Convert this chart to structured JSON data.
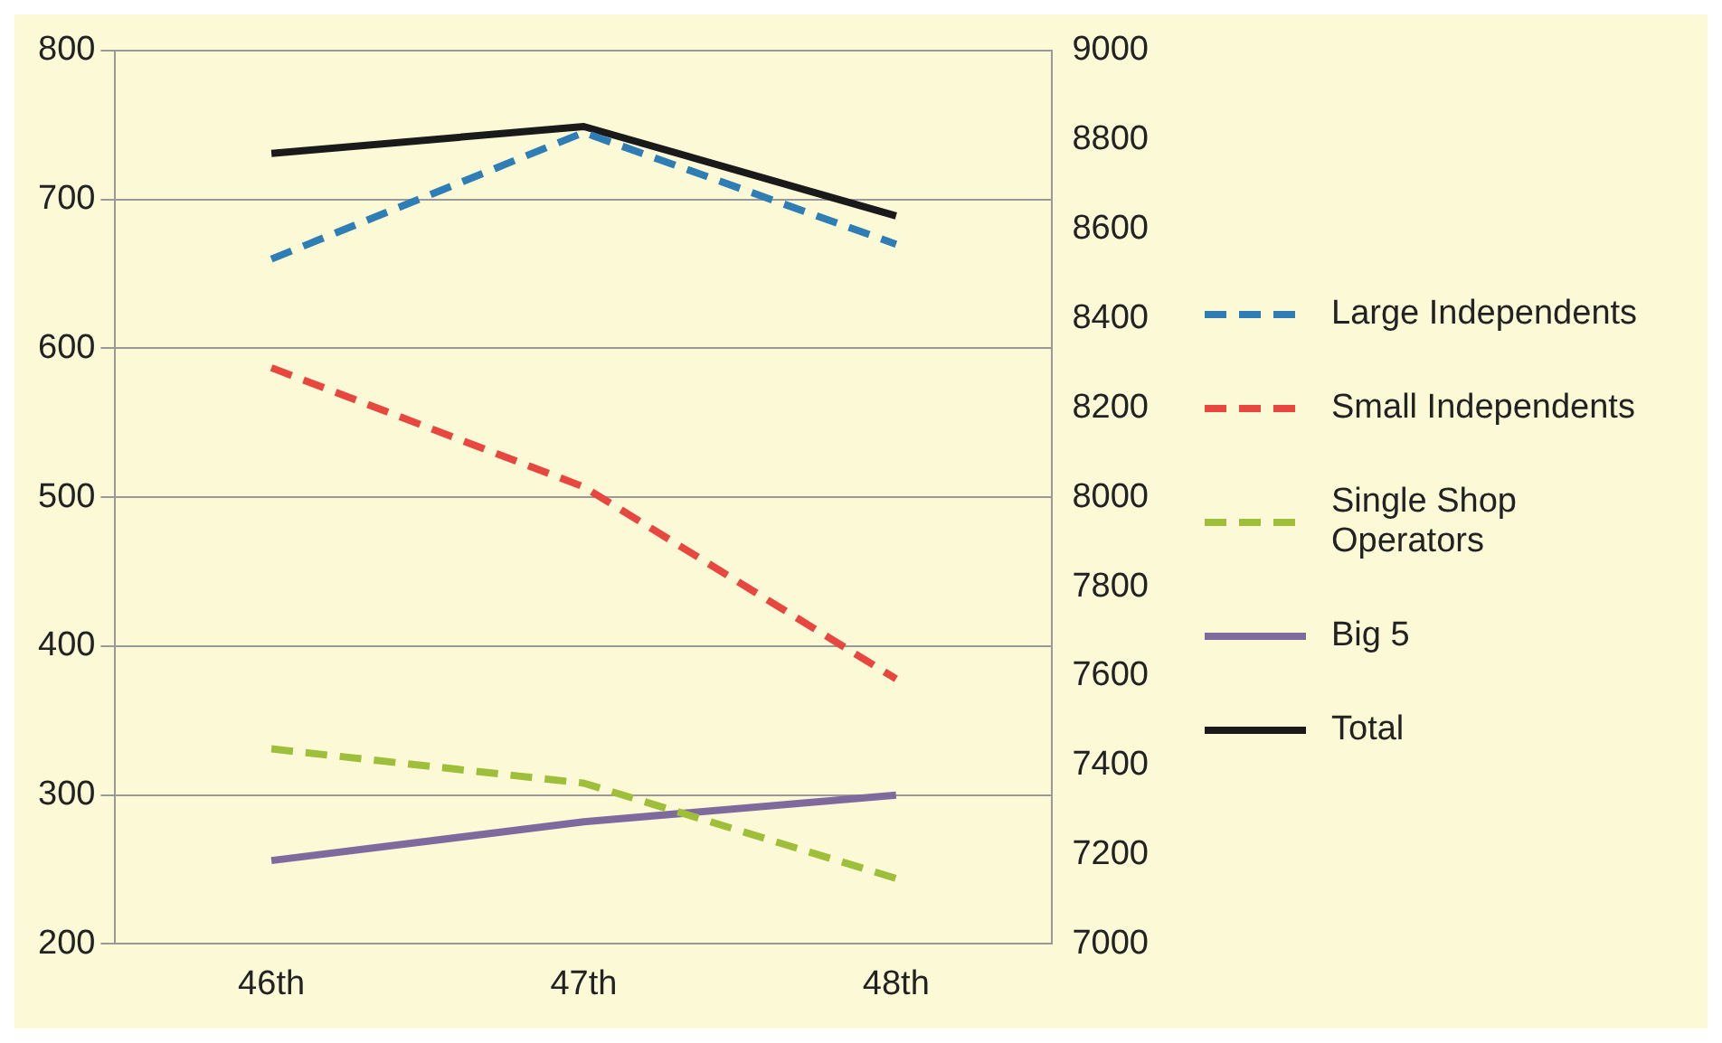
{
  "chart_data": {
    "type": "line",
    "categories": [
      "46th",
      "47th",
      "48th"
    ],
    "series": [
      {
        "name": "Large Independents",
        "color": "#2e7db5",
        "values": [
          660,
          745,
          670
        ],
        "line_style": "dashed"
      },
      {
        "name": "Small Independents",
        "color": "#e8473f",
        "values": [
          587,
          507,
          378
        ],
        "line_style": "dashed"
      },
      {
        "name": "Single Shop Operators",
        "color": "#9fbf3b",
        "values": [
          331,
          308,
          244
        ],
        "line_style": "dashed"
      },
      {
        "name": "Big 5",
        "color": "#7f6a9e",
        "values": [
          256,
          282,
          300
        ],
        "line_style": "solid"
      },
      {
        "name": "Total",
        "color": "#1a1a1a",
        "values": [
          8770,
          8830,
          8630
        ],
        "line_style": "solid",
        "axis": "y2"
      }
    ],
    "ylim": [
      200,
      800
    ],
    "yticks": [
      200,
      300,
      400,
      500,
      600,
      700,
      800
    ],
    "y2lim": [
      7000,
      9000
    ],
    "y2ticks": [
      7000,
      7200,
      7400,
      7600,
      7800,
      8000,
      8200,
      8400,
      8600,
      8800,
      9000
    ],
    "grid": "y",
    "legend": "right",
    "marker": "none"
  }
}
